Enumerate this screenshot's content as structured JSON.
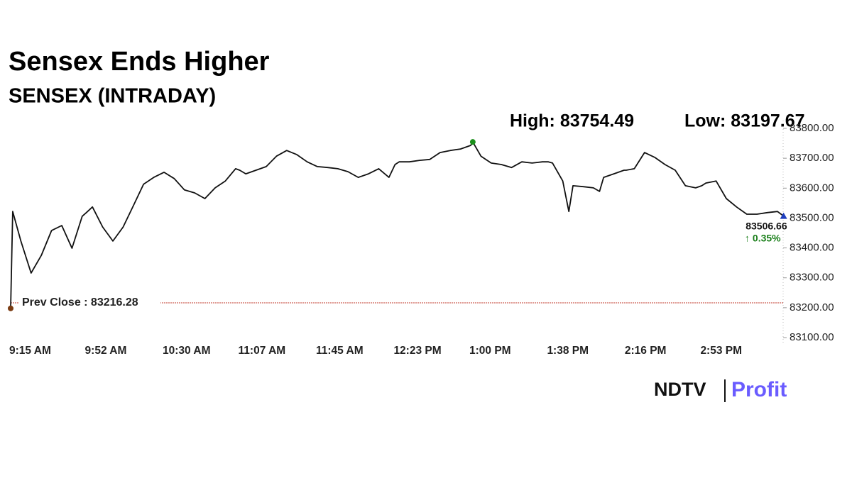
{
  "chart_data": {
    "type": "line",
    "title": "Sensex Ends Higher",
    "subtitle": "SENSEX (INTRADAY)",
    "high_label": "High: 83754.49",
    "low_label": "Low: 83197.67",
    "prev_close": {
      "label": "Prev Close : 83216.28",
      "value": 83216.28,
      "color": "#c0392b"
    },
    "last_label": "83506.66",
    "change_label": "↑ 0.35%",
    "change_color": "#1a7f1a",
    "x": [
      "9:15 AM",
      "9:16 AM",
      "9:20 AM",
      "9:25 AM",
      "9:30 AM",
      "9:35 AM",
      "9:40 AM",
      "9:45 AM",
      "9:50 AM",
      "9:52 AM",
      "9:55 AM",
      "10:00 AM",
      "10:05 AM",
      "10:10 AM",
      "10:15 AM",
      "10:20 AM",
      "10:25 AM",
      "10:30 AM",
      "10:35 AM",
      "10:40 AM",
      "10:45 AM",
      "10:50 AM",
      "10:55 AM",
      "11:00 AM",
      "11:05 AM",
      "11:07 AM",
      "11:10 AM",
      "11:15 AM",
      "11:20 AM",
      "11:25 AM",
      "11:30 AM",
      "11:35 AM",
      "11:40 AM",
      "11:45 AM",
      "11:50 AM",
      "11:55 AM",
      "12:00 PM",
      "12:05 PM",
      "12:10 PM",
      "12:15 PM",
      "12:20 PM",
      "12:23 PM",
      "12:25 PM",
      "12:30 PM",
      "12:35 PM",
      "12:40 PM",
      "12:45 PM",
      "12:50 PM",
      "12:55 PM",
      "1:00 PM",
      "1:01 PM",
      "1:05 PM",
      "1:10 PM",
      "1:15 PM",
      "1:20 PM",
      "1:25 PM",
      "1:30 PM",
      "1:35 PM",
      "1:38 PM",
      "1:40 PM",
      "1:45 PM",
      "1:48 PM",
      "1:50 PM",
      "1:55 PM",
      "2:00 PM",
      "2:03 PM",
      "2:05 PM",
      "2:10 PM",
      "2:15 PM",
      "2:16 PM",
      "2:20 PM",
      "2:25 PM",
      "2:30 PM",
      "2:35 PM",
      "2:40 PM",
      "2:45 PM",
      "2:50 PM",
      "2:53 PM",
      "2:55 PM",
      "3:00 PM",
      "3:05 PM",
      "3:10 PM",
      "3:15 PM",
      "3:20 PM",
      "3:25 PM",
      "3:30 PM",
      "3:33 PM"
    ],
    "series": [
      {
        "name": "SENSEX",
        "color": "#111111",
        "values": [
          83197.67,
          83522,
          83423,
          83316,
          83375,
          83458,
          83475,
          83399,
          83506,
          83518,
          83537,
          83470,
          83423,
          83470,
          83541,
          83613,
          83636,
          83653,
          83632,
          83594,
          83584,
          83565,
          83601,
          83624,
          83665,
          83660,
          83648,
          83660,
          83672,
          83707,
          83726,
          83712,
          83688,
          83672,
          83669,
          83665,
          83655,
          83636,
          83648,
          83665,
          83636,
          83679,
          83688,
          83688,
          83693,
          83696,
          83719,
          83726,
          83731,
          83743,
          83754.49,
          83707,
          83684,
          83679,
          83669,
          83688,
          83684,
          83688,
          83688,
          83684,
          83624,
          83522,
          83608,
          83605,
          83601,
          83589,
          83636,
          83648,
          83660,
          83660,
          83665,
          83719,
          83703,
          83679,
          83660,
          83608,
          83601,
          83608,
          83617,
          83624,
          83565,
          83537,
          83513,
          83513,
          83518,
          83522,
          83506.66
        ]
      }
    ],
    "xticks": [
      "9:15 AM",
      "9:52 AM",
      "10:30 AM",
      "11:07 AM",
      "11:45 AM",
      "12:23 PM",
      "1:00 PM",
      "1:38 PM",
      "2:16 PM",
      "2:53 PM"
    ],
    "ylim": [
      83100,
      83800
    ],
    "yticks": [
      {
        "value": 83100,
        "label": "83100.00"
      },
      {
        "value": 83200,
        "label": "83200.00"
      },
      {
        "value": 83300,
        "label": "83300.00"
      },
      {
        "value": 83400,
        "label": "83400.00"
      },
      {
        "value": 83500,
        "label": "83500.00"
      },
      {
        "value": 83600,
        "label": "83600.00"
      },
      {
        "value": 83700,
        "label": "83700.00"
      },
      {
        "value": 83800,
        "label": "83800.00"
      }
    ],
    "grid": false,
    "high_color": "#1a8f1a",
    "end_color": "#1f3fbf",
    "start_color": "#7a3b12",
    "brand": [
      "NDTV",
      "Profit"
    ]
  }
}
